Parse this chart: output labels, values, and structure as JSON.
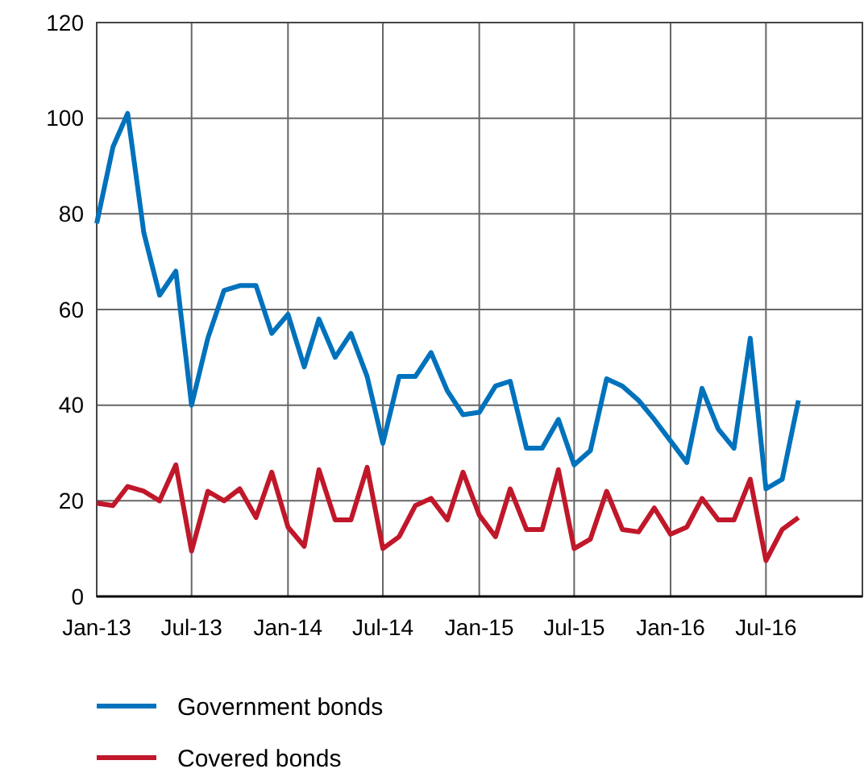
{
  "chart_data": {
    "type": "line",
    "x": [
      "2013-01",
      "2013-02",
      "2013-03",
      "2013-04",
      "2013-05",
      "2013-06",
      "2013-07",
      "2013-08",
      "2013-09",
      "2013-10",
      "2013-11",
      "2013-12",
      "2014-01",
      "2014-02",
      "2014-03",
      "2014-04",
      "2014-05",
      "2014-06",
      "2014-07",
      "2014-08",
      "2014-09",
      "2014-10",
      "2014-11",
      "2014-12",
      "2015-01",
      "2015-02",
      "2015-03",
      "2015-04",
      "2015-05",
      "2015-06",
      "2015-07",
      "2015-08",
      "2015-09",
      "2015-10",
      "2015-11",
      "2015-12",
      "2016-01",
      "2016-02",
      "2016-03",
      "2016-04",
      "2016-05",
      "2016-06",
      "2016-07",
      "2016-08",
      "2016-09"
    ],
    "series": [
      {
        "name": "Government bonds",
        "color": "#0072bc",
        "values": [
          78,
          94,
          101,
          76,
          63,
          68,
          40,
          54,
          64,
          65,
          65,
          55,
          59,
          48,
          58,
          50,
          55,
          46,
          32,
          46,
          46,
          51,
          43,
          38,
          38.5,
          44,
          45,
          31,
          31,
          37,
          27.5,
          30.5,
          45.5,
          44,
          41,
          37,
          32.5,
          28,
          43.5,
          35,
          31,
          54,
          22.5,
          24.5,
          41
        ]
      },
      {
        "name": "Covered bonds",
        "color": "#c0182a",
        "values": [
          19.5,
          19,
          23,
          22,
          20,
          27.5,
          9.5,
          22,
          20,
          22.5,
          16.5,
          26,
          14.5,
          10.5,
          26.5,
          16,
          16,
          27,
          10,
          12.5,
          19,
          20.5,
          16,
          26,
          17,
          12.5,
          22.5,
          14,
          14,
          26.5,
          10,
          12,
          22,
          14,
          13.5,
          18.5,
          13,
          14.5,
          20.5,
          16,
          16,
          24.5,
          7.5,
          14,
          16.5
        ]
      }
    ],
    "xlim": [
      "2013-01",
      "2017-01"
    ],
    "xticks": [
      {
        "value": "2013-01",
        "label": "Jan-13"
      },
      {
        "value": "2013-07",
        "label": "Jul-13"
      },
      {
        "value": "2014-01",
        "label": "Jan-14"
      },
      {
        "value": "2014-07",
        "label": "Jul-14"
      },
      {
        "value": "2015-01",
        "label": "Jan-15"
      },
      {
        "value": "2015-07",
        "label": "Jul-15"
      },
      {
        "value": "2016-01",
        "label": "Jan-16"
      },
      {
        "value": "2016-07",
        "label": "Jul-16"
      },
      {
        "value": "2017-01",
        "label": null
      }
    ],
    "ylim": [
      0,
      120
    ],
    "yticks": [
      0,
      20,
      40,
      60,
      80,
      100,
      120
    ],
    "grid": true,
    "legend": "bottom",
    "marker": "none",
    "line_style": "solid"
  }
}
